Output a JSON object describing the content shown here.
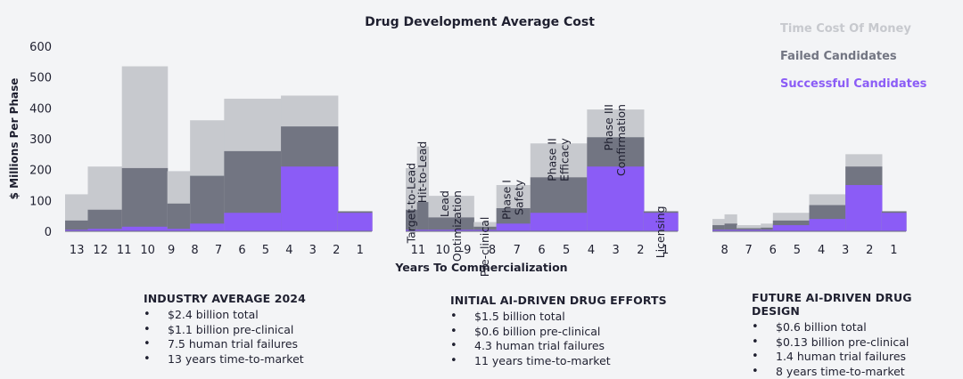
{
  "chart_data": {
    "type": "bar",
    "subtype": "stacked-step",
    "title": "Drug Development Average Cost",
    "ylabel": "$ Millions Per Phase",
    "xlabel": "Years To Commercialization",
    "ylim": [
      0,
      600
    ],
    "yticks": [
      0,
      100,
      200,
      300,
      400,
      500,
      600
    ],
    "legend": {
      "placement": "top-right",
      "entries": [
        "Time Cost Of Money",
        "Failed Candidates",
        "Successful Candidates"
      ]
    },
    "colors": {
      "time": "#c7c9ce",
      "failed": "#727582",
      "success": "#8b5cf6"
    },
    "panels": [
      {
        "x_labels": [
          "13",
          "12",
          "11",
          "10",
          "9",
          "8",
          "7",
          "6",
          "5",
          "4",
          "3",
          "2",
          "1"
        ],
        "segments": [
          {
            "span": 1,
            "success": 5,
            "failed": 35,
            "time": 120
          },
          {
            "span": 1.5,
            "success": 8,
            "failed": 70,
            "time": 210
          },
          {
            "span": 2,
            "success": 15,
            "failed": 205,
            "time": 535
          },
          {
            "span": 1,
            "success": 8,
            "failed": 90,
            "time": 195
          },
          {
            "span": 1.5,
            "success": 25,
            "failed": 180,
            "time": 360
          },
          {
            "span": 2.5,
            "success": 60,
            "failed": 260,
            "time": 430
          },
          {
            "span": 2.5,
            "success": 210,
            "failed": 340,
            "time": 440
          },
          {
            "span": 1.5,
            "success": 60,
            "failed": 65,
            "time": 65
          }
        ]
      },
      {
        "x_labels": [
          "11",
          "10",
          "9",
          "8",
          "7",
          "6",
          "5",
          "4",
          "3",
          "2",
          "1"
        ],
        "segments": [
          {
            "span": 0.5,
            "success": 5,
            "failed": 70,
            "time": 205
          },
          {
            "span": 0.5,
            "success": 5,
            "failed": 95,
            "time": 275
          },
          {
            "span": 2,
            "success": 5,
            "failed": 45,
            "time": 115
          },
          {
            "span": 1,
            "success": 5,
            "failed": 15,
            "time": 30
          },
          {
            "span": 1.5,
            "success": 25,
            "failed": 75,
            "time": 150
          },
          {
            "span": 2.5,
            "success": 60,
            "failed": 175,
            "time": 285
          },
          {
            "span": 2.5,
            "success": 210,
            "failed": 305,
            "time": 395
          },
          {
            "span": 1.5,
            "success": 60,
            "failed": 65,
            "time": 65
          }
        ],
        "phase_labels": [
          "Target-to-Lead",
          "Hit-to-Lead",
          "Lead Optimization",
          "Pre-clinical",
          "Phase I Safety",
          "Phase II Efficacy",
          "Phase III Confirmation",
          "Licensing"
        ]
      },
      {
        "x_labels": [
          "8",
          "7",
          "6",
          "5",
          "4",
          "3",
          "2",
          "1"
        ],
        "segments": [
          {
            "span": 0.5,
            "success": 5,
            "failed": 20,
            "time": 40
          },
          {
            "span": 0.5,
            "success": 5,
            "failed": 25,
            "time": 55
          },
          {
            "span": 1,
            "success": 5,
            "failed": 10,
            "time": 20
          },
          {
            "span": 0.5,
            "success": 5,
            "failed": 12,
            "time": 25
          },
          {
            "span": 1.5,
            "success": 20,
            "failed": 35,
            "time": 60
          },
          {
            "span": 1.5,
            "success": 40,
            "failed": 85,
            "time": 120
          },
          {
            "span": 1.5,
            "success": 150,
            "failed": 210,
            "time": 250
          },
          {
            "span": 1,
            "success": 60,
            "failed": 65,
            "time": 65
          }
        ]
      }
    ]
  },
  "summaries": [
    {
      "heading": "INDUSTRY AVERAGE 2024",
      "items": [
        "$2.4 billion total",
        "$1.1 billion pre-clinical",
        "7.5 human trial failures",
        "13 years time-to-market"
      ]
    },
    {
      "heading": "INITIAL AI-DRIVEN DRUG EFFORTS",
      "items": [
        "$1.5 billion total",
        "$0.6 billion pre-clinical",
        "4.3 human trial failures",
        "11 years time-to-market"
      ]
    },
    {
      "heading": "FUTURE AI-DRIVEN DRUG DESIGN",
      "items": [
        "$0.6 billion total",
        "$0.13 billion pre-clinical",
        "1.4 human trial failures",
        "8 years time-to-market"
      ]
    }
  ]
}
